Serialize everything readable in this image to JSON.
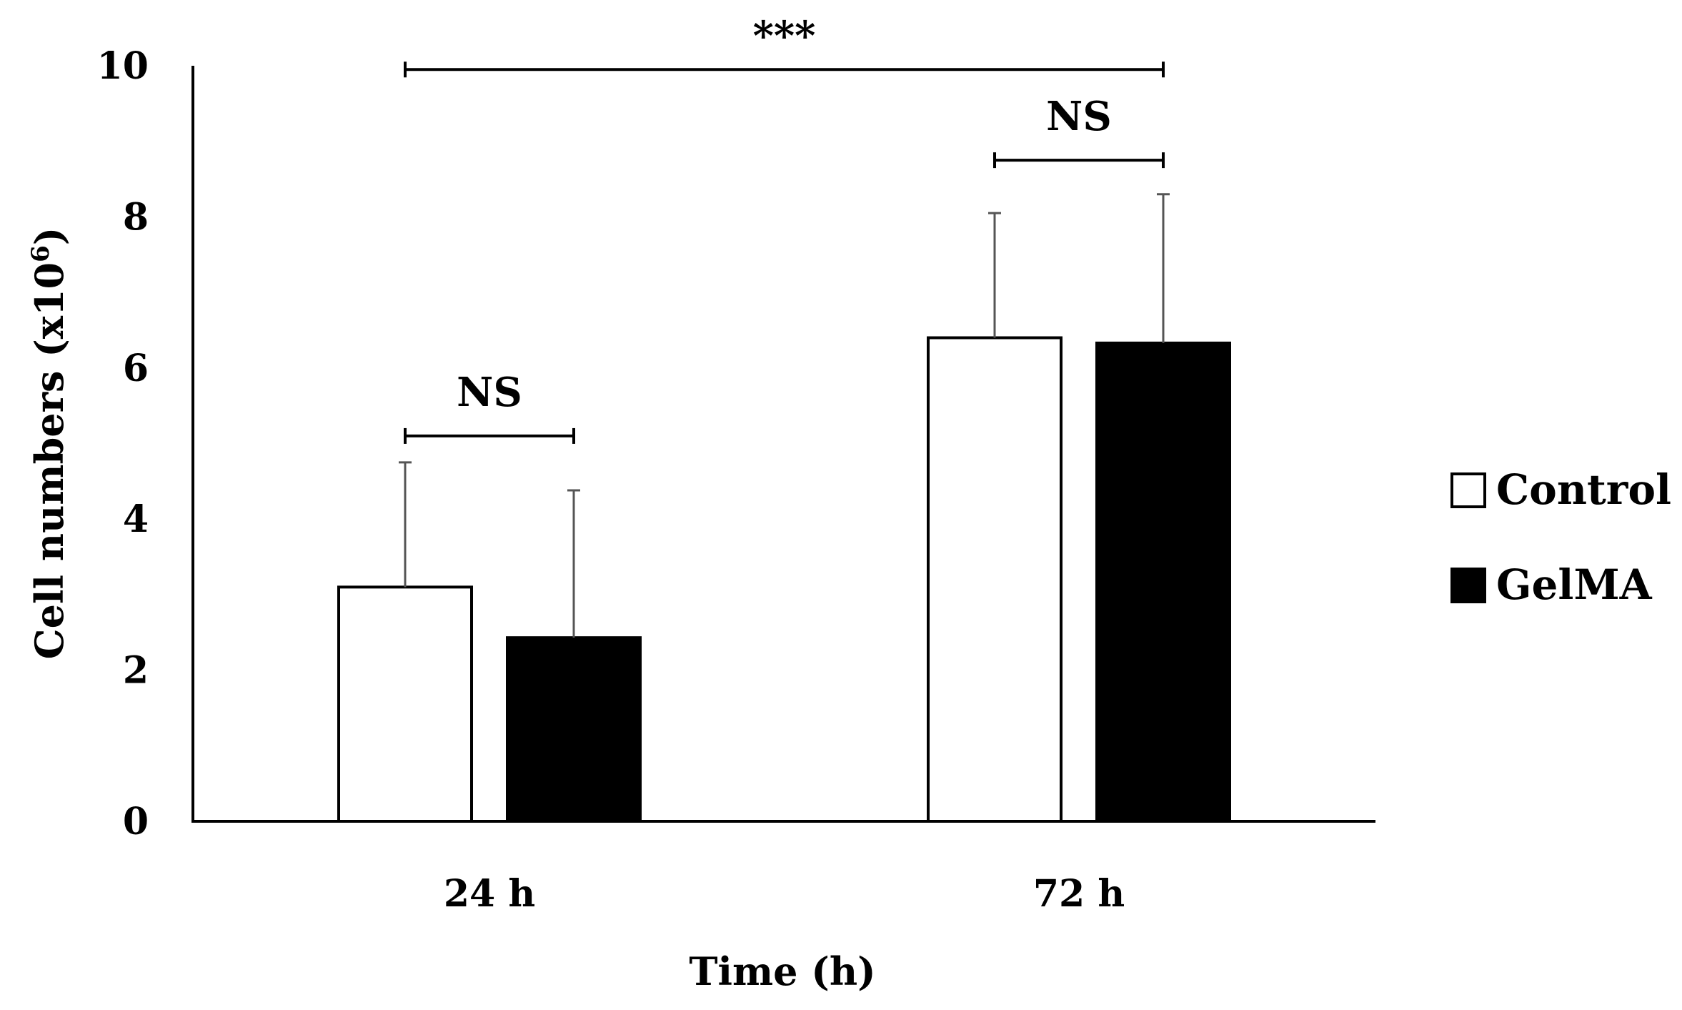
{
  "chart_data": {
    "type": "bar",
    "xlabel": "Time (h)",
    "ylabel": "Cell numbers (x10",
    "ylabel_superscript": "6",
    "ylabel_suffix": ")",
    "ylim": [
      0,
      10
    ],
    "yticks": [
      "0",
      "2",
      "4",
      "6",
      "8",
      "10"
    ],
    "categories": [
      "24 h",
      "72 h"
    ],
    "series": [
      {
        "name": "Control",
        "fill": "#ffffff",
        "stroke": "#000000",
        "values": [
          3.1,
          6.4
        ],
        "errors": [
          1.65,
          1.65
        ]
      },
      {
        "name": "GelMA",
        "fill": "#000000",
        "stroke": "#000000",
        "values": [
          2.43,
          6.33
        ],
        "errors": [
          1.95,
          1.97
        ]
      }
    ],
    "error_bar_color": "#555555",
    "significance": [
      {
        "label": "NS",
        "from_series": 0,
        "to_series": 1,
        "from_category": 0,
        "to_category": 0,
        "level": 5.1
      },
      {
        "label": "NS",
        "from_series": 0,
        "to_series": 1,
        "from_category": 1,
        "to_category": 1,
        "level": 8.75
      },
      {
        "label": "***",
        "from_series": 0,
        "to_series": 1,
        "from_category": 0,
        "to_category": 1,
        "level": 9.95
      }
    ],
    "legend": {
      "position": "right",
      "entries": [
        "Control",
        "GelMA"
      ]
    }
  }
}
